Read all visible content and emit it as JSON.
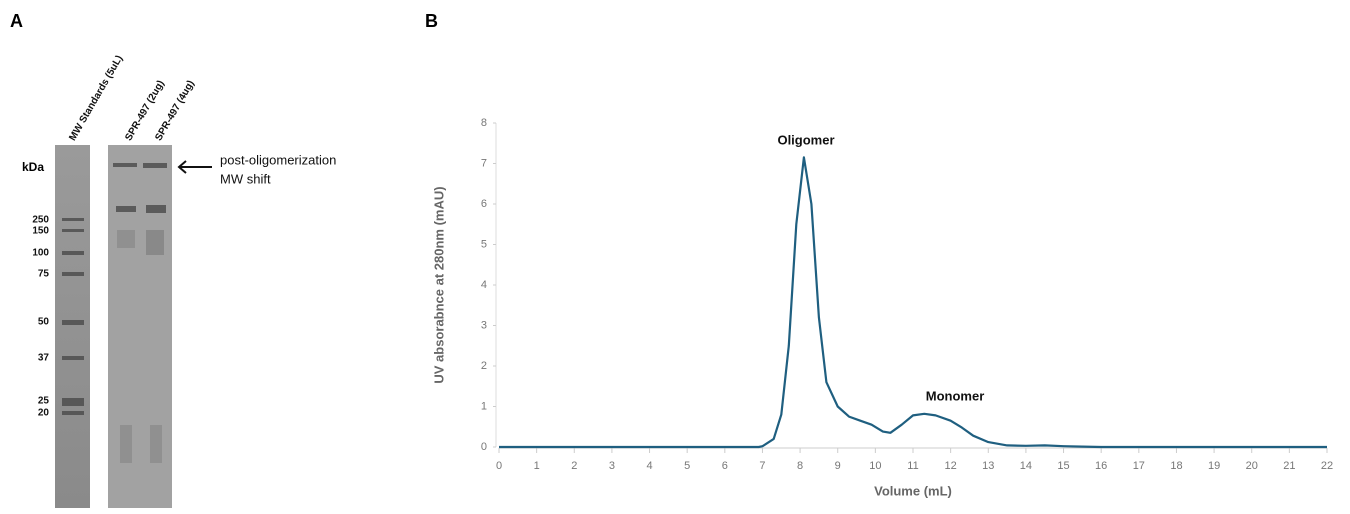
{
  "gel": {
    "panel_label": "A",
    "lanes": [
      "MW Standards (5uL)",
      "SPR-497 (2ug)",
      "SPR-497 (4ug)"
    ],
    "unit_label": "kDa",
    "markers": [
      250,
      150,
      100,
      75,
      50,
      37,
      25,
      20
    ],
    "annotation": [
      "post-oligomerization",
      "MW shift"
    ]
  },
  "chart_data": {
    "type": "line",
    "panel_label": "B",
    "x_label": "Volume (mL)",
    "y_label": "UV absorabnce at 280nm (mAU)",
    "annotations": [
      "Oligomer",
      "Monomer"
    ],
    "x": [
      0,
      0.5,
      6.9,
      7.0,
      7.3,
      7.5,
      7.7,
      7.9,
      8.1,
      8.3,
      8.5,
      8.7,
      9.0,
      9.3,
      9.6,
      9.9,
      10.2,
      10.4,
      10.7,
      11.0,
      11.3,
      11.6,
      12.0,
      12.3,
      12.6,
      13.0,
      13.5,
      14.0,
      14.5,
      15.0,
      15.5,
      16.0,
      22.0
    ],
    "series": [
      {
        "color": "#1f5f80",
        "values": [
          0,
          0,
          0,
          0.02,
          0.2,
          0.8,
          2.5,
          5.5,
          7.15,
          6.0,
          3.2,
          1.6,
          1.0,
          0.75,
          0.65,
          0.55,
          0.38,
          0.35,
          0.55,
          0.78,
          0.82,
          0.78,
          0.65,
          0.48,
          0.28,
          0.12,
          0.04,
          0.03,
          0.04,
          0.02,
          0.01,
          0,
          0
        ]
      }
    ],
    "xlim": [
      0,
      22
    ],
    "ylim": [
      0,
      8
    ],
    "xticks": [
      0,
      1,
      2,
      3,
      4,
      5,
      6,
      7,
      8,
      9,
      10,
      11,
      12,
      13,
      14,
      15,
      16,
      17,
      18,
      19,
      20,
      21,
      22
    ],
    "yticks": [
      0,
      1,
      2,
      3,
      4,
      5,
      6,
      7,
      8
    ]
  }
}
